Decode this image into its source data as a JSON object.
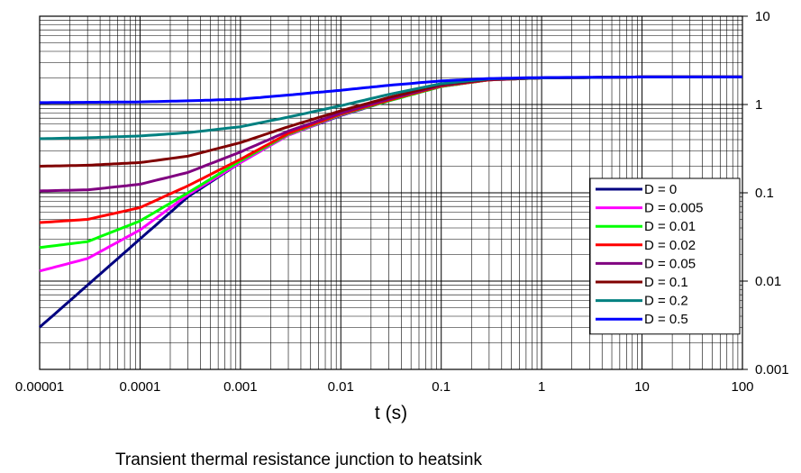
{
  "chart_data": {
    "type": "line",
    "xscale": "log",
    "yscale": "log",
    "xlim": [
      1e-05,
      100
    ],
    "ylim": [
      0.001,
      10
    ],
    "xlabel": "t (s)",
    "ylabel": "",
    "caption": "Transient thermal resistance junction to heatsink",
    "x_ticks": [
      "0.00001",
      "0.0001",
      "0.001",
      "0.01",
      "0.1",
      "1",
      "10",
      "100"
    ],
    "y_ticks": [
      "10",
      "1",
      "0.1",
      "0.01",
      "0.001"
    ],
    "grid": true,
    "legend_position": "right",
    "series": [
      {
        "name": "D = 0",
        "color": "#000080",
        "x": [
          1e-05,
          3e-05,
          0.0001,
          0.0003,
          0.001,
          0.003,
          0.01,
          0.03,
          0.1,
          0.3,
          1,
          10,
          100
        ],
        "y": [
          0.003,
          0.009,
          0.03,
          0.09,
          0.22,
          0.45,
          0.75,
          1.1,
          1.6,
          1.9,
          2.0,
          2.05,
          2.05
        ]
      },
      {
        "name": "D = 0.005",
        "color": "#FF00FF",
        "x": [
          1e-05,
          3e-05,
          0.0001,
          0.0003,
          0.001,
          0.003,
          0.01,
          0.03,
          0.1,
          0.3,
          1,
          10,
          100
        ],
        "y": [
          0.013,
          0.018,
          0.038,
          0.095,
          0.22,
          0.45,
          0.76,
          1.1,
          1.6,
          1.9,
          2.0,
          2.05,
          2.05
        ]
      },
      {
        "name": "D = 0.01",
        "color": "#00FF00",
        "x": [
          1e-05,
          3e-05,
          0.0001,
          0.0003,
          0.001,
          0.003,
          0.01,
          0.03,
          0.1,
          0.3,
          1,
          10,
          100
        ],
        "y": [
          0.024,
          0.028,
          0.048,
          0.1,
          0.23,
          0.46,
          0.77,
          1.1,
          1.6,
          1.9,
          2.0,
          2.05,
          2.05
        ]
      },
      {
        "name": "D = 0.02",
        "color": "#FF0000",
        "x": [
          1e-05,
          3e-05,
          0.0001,
          0.0003,
          0.001,
          0.003,
          0.01,
          0.03,
          0.1,
          0.3,
          1,
          10,
          100
        ],
        "y": [
          0.046,
          0.05,
          0.068,
          0.12,
          0.24,
          0.47,
          0.78,
          1.12,
          1.62,
          1.9,
          2.0,
          2.05,
          2.05
        ]
      },
      {
        "name": "D = 0.05",
        "color": "#800080",
        "x": [
          1e-05,
          3e-05,
          0.0001,
          0.0003,
          0.001,
          0.003,
          0.01,
          0.03,
          0.1,
          0.3,
          1,
          10,
          100
        ],
        "y": [
          0.105,
          0.108,
          0.125,
          0.17,
          0.29,
          0.5,
          0.8,
          1.15,
          1.65,
          1.92,
          2.0,
          2.05,
          2.05
        ]
      },
      {
        "name": "D = 0.1",
        "color": "#800000",
        "x": [
          1e-05,
          3e-05,
          0.0001,
          0.0003,
          0.001,
          0.003,
          0.01,
          0.03,
          0.1,
          0.3,
          1,
          10,
          100
        ],
        "y": [
          0.2,
          0.205,
          0.22,
          0.26,
          0.37,
          0.56,
          0.85,
          1.2,
          1.68,
          1.93,
          2.0,
          2.05,
          2.05
        ]
      },
      {
        "name": "D = 0.2",
        "color": "#008080",
        "x": [
          1e-05,
          3e-05,
          0.0001,
          0.0003,
          0.001,
          0.003,
          0.01,
          0.03,
          0.1,
          0.3,
          1,
          10,
          100
        ],
        "y": [
          0.41,
          0.42,
          0.44,
          0.48,
          0.56,
          0.72,
          0.97,
          1.3,
          1.72,
          1.95,
          2.0,
          2.05,
          2.05
        ]
      },
      {
        "name": "D = 0.5",
        "color": "#0000FF",
        "x": [
          1e-05,
          3e-05,
          0.0001,
          0.0003,
          0.001,
          0.003,
          0.01,
          0.03,
          0.1,
          0.3,
          1,
          10,
          100
        ],
        "y": [
          1.05,
          1.06,
          1.07,
          1.1,
          1.15,
          1.28,
          1.45,
          1.65,
          1.85,
          1.97,
          2.02,
          2.05,
          2.05
        ]
      }
    ]
  }
}
